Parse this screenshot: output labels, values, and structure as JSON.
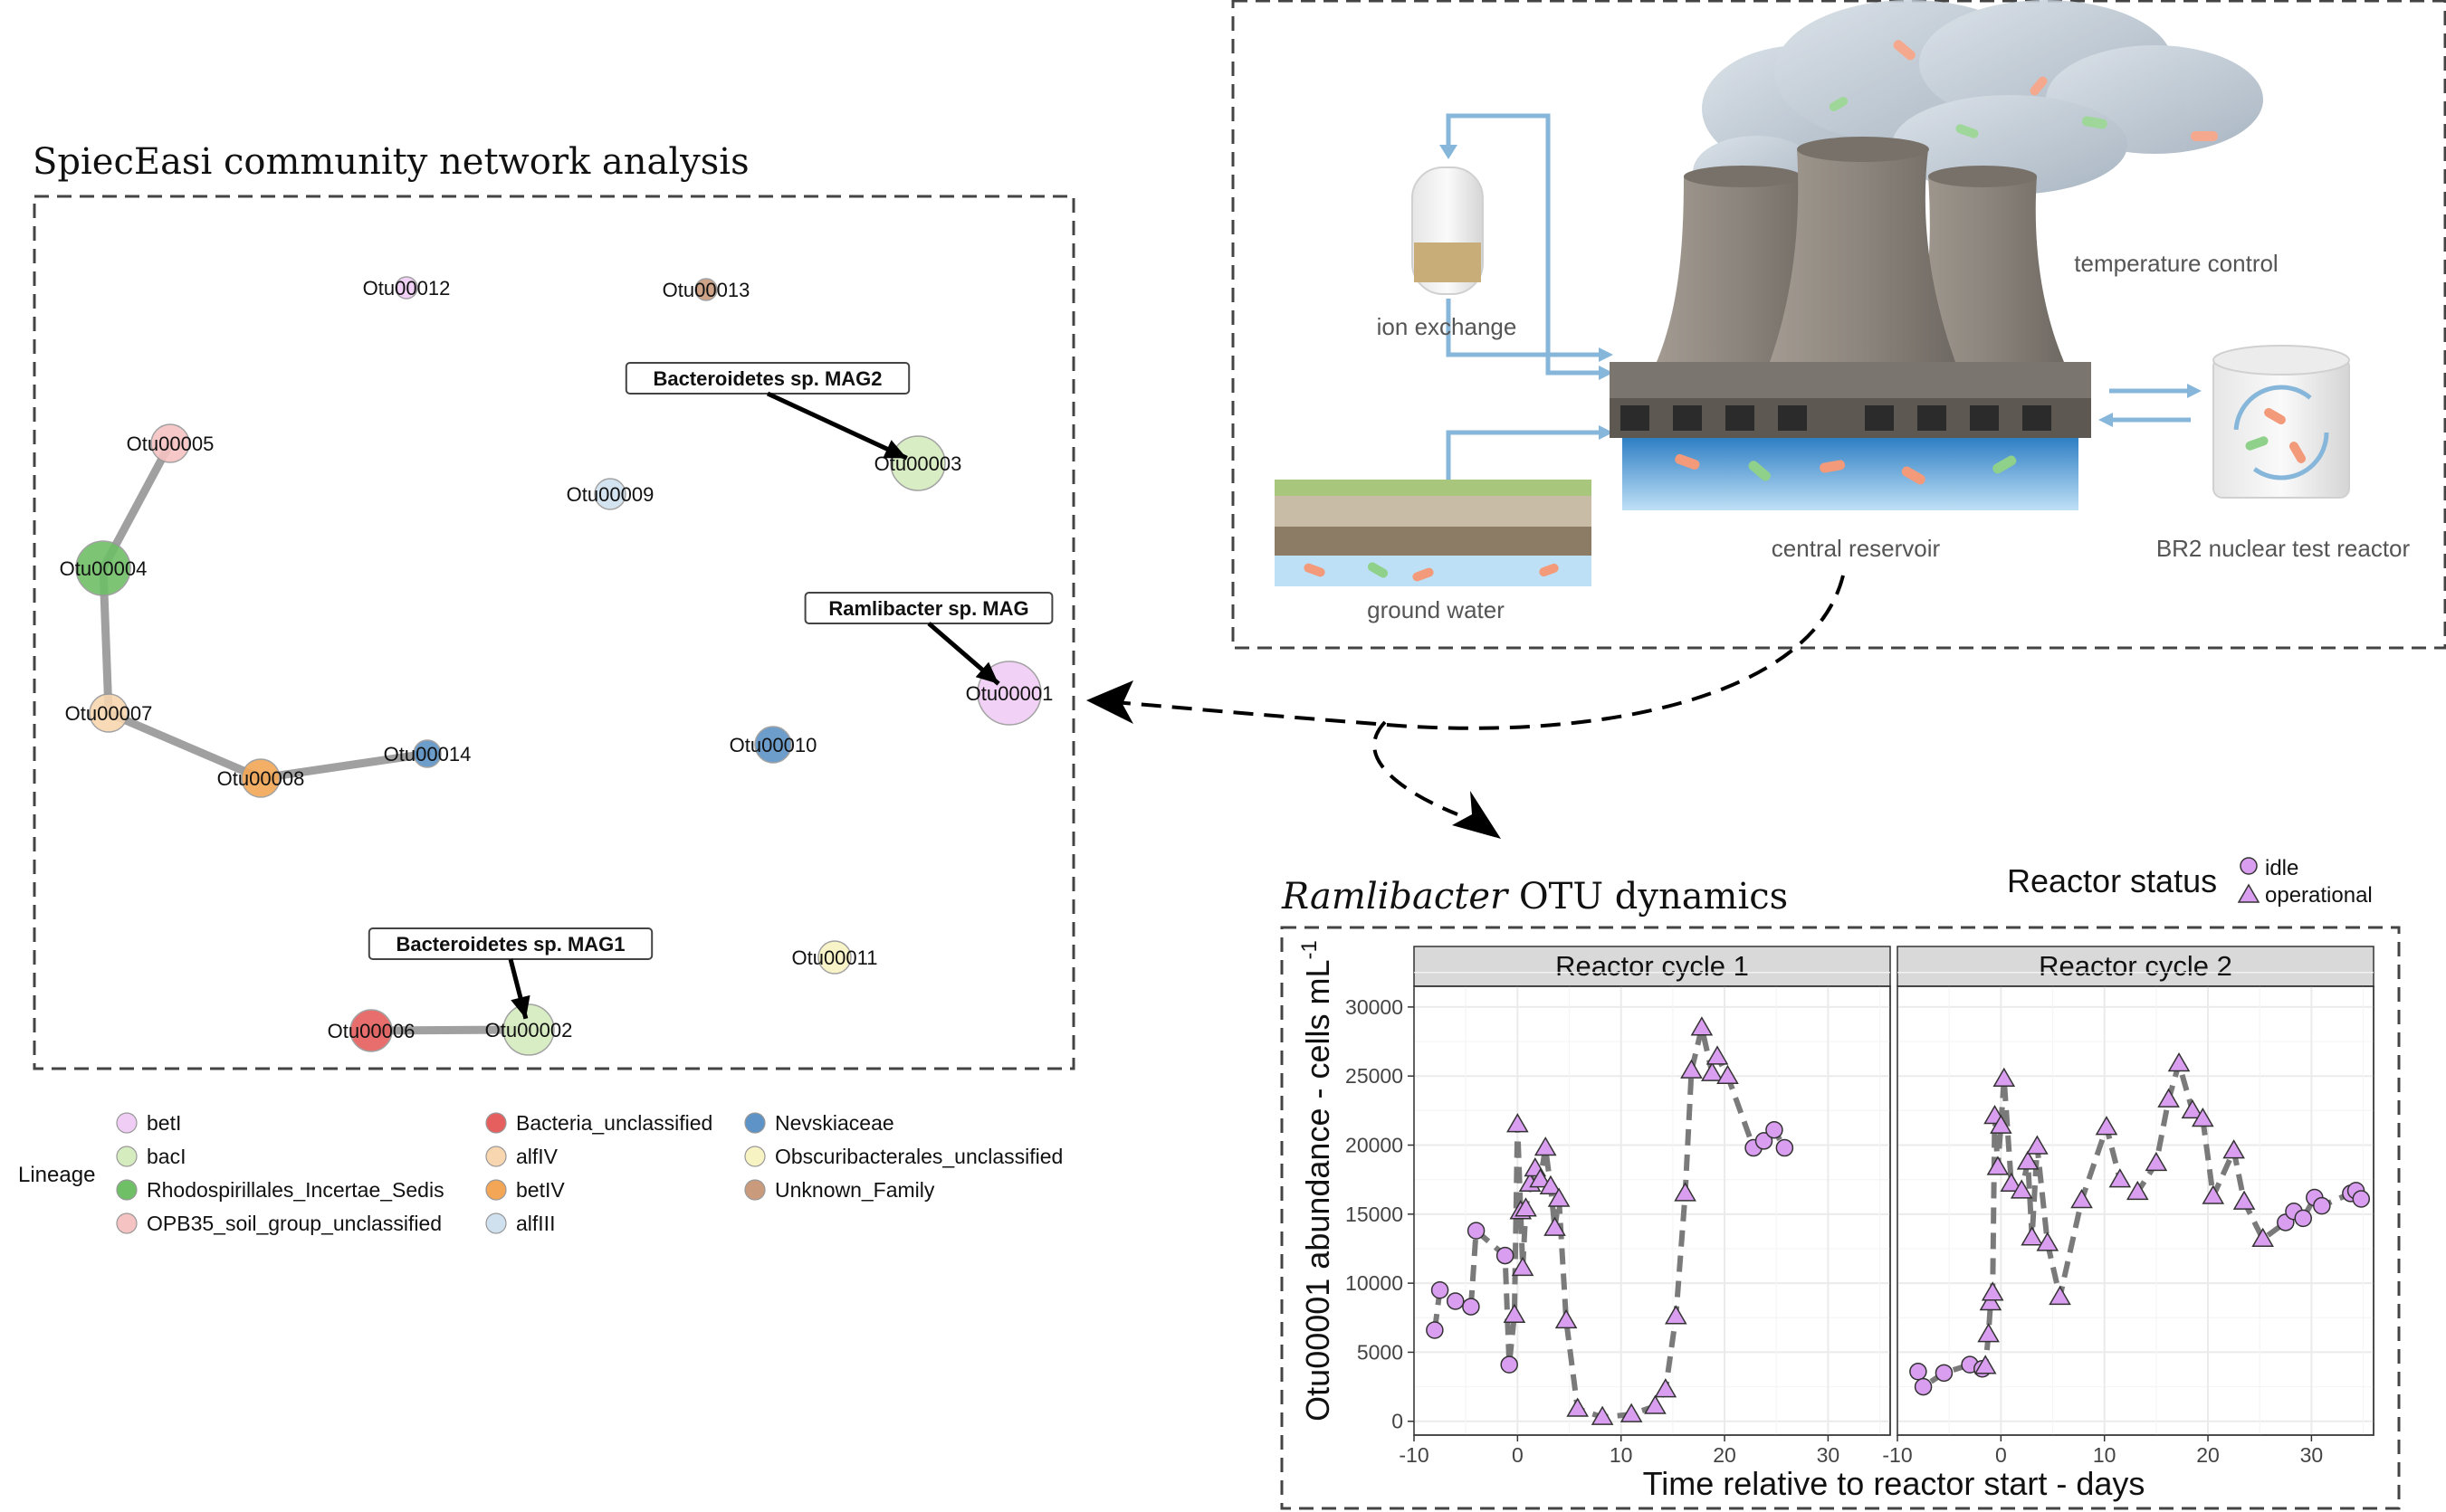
{
  "network": {
    "title": "SpiecEasi community network analysis",
    "nodes": [
      {
        "id": "Otu00012",
        "label": "Otu00012",
        "lineage": "betI",
        "size": 12
      },
      {
        "id": "Otu00013",
        "label": "Otu00013",
        "lineage": "Unknown_Family",
        "size": 12
      },
      {
        "id": "Otu00005",
        "label": "Otu00005",
        "lineage": "OPB35_soil_group_unclassified",
        "size": 21
      },
      {
        "id": "Otu00003",
        "label": "Otu00003",
        "lineage": "bacI",
        "size": 30
      },
      {
        "id": "Otu00009",
        "label": "Otu00009",
        "lineage": "alfIII",
        "size": 17
      },
      {
        "id": "Otu00004",
        "label": "Otu00004",
        "lineage": "Rhodospirillales_Incertae_Sedis",
        "size": 30
      },
      {
        "id": "Otu00001",
        "label": "Otu00001",
        "lineage": "betI",
        "size": 35
      },
      {
        "id": "Otu00007",
        "label": "Otu00007",
        "lineage": "alfIV",
        "size": 21
      },
      {
        "id": "Otu00010",
        "label": "Otu00010",
        "lineage": "Nevskiaceae",
        "size": 20
      },
      {
        "id": "Otu00014",
        "label": "Otu00014",
        "lineage": "Nevskiaceae",
        "size": 15
      },
      {
        "id": "Otu00008",
        "label": "Otu00008",
        "lineage": "betIV",
        "size": 21
      },
      {
        "id": "Otu00011",
        "label": "Otu00011",
        "lineage": "Obscuribacterales_unclassified",
        "size": 18
      },
      {
        "id": "Otu00006",
        "label": "Otu00006",
        "lineage": "Bacteria_unclassified",
        "size": 23
      },
      {
        "id": "Otu00002",
        "label": "Otu00002",
        "lineage": "bacI",
        "size": 28
      }
    ],
    "edges": [
      {
        "source": "Otu00005",
        "target": "Otu00004"
      },
      {
        "source": "Otu00004",
        "target": "Otu00007"
      },
      {
        "source": "Otu00007",
        "target": "Otu00008"
      },
      {
        "source": "Otu00008",
        "target": "Otu00014"
      },
      {
        "source": "Otu00006",
        "target": "Otu00002"
      }
    ],
    "annotations": [
      {
        "text": "Bacteroidetes sp. MAG2",
        "target": "Otu00003"
      },
      {
        "text": "Ramlibacter sp. MAG",
        "target": "Otu00001"
      },
      {
        "text": "Bacteroidetes sp. MAG1",
        "target": "Otu00002"
      }
    ],
    "legend": {
      "title": "Lineage",
      "items": [
        {
          "label": "betI",
          "color": "#f0cdf5"
        },
        {
          "label": "bacI",
          "color": "#d5ecbf"
        },
        {
          "label": "Rhodospirillales_Incertae_Sedis",
          "color": "#6fbf67"
        },
        {
          "label": "OPB35_soil_group_unclassified",
          "color": "#f6c3c3"
        },
        {
          "label": "Bacteria_unclassified",
          "color": "#e65f5f"
        },
        {
          "label": "alfIV",
          "color": "#f8d6b0"
        },
        {
          "label": "betIV",
          "color": "#f3a756"
        },
        {
          "label": "alfIII",
          "color": "#cfe0ee"
        },
        {
          "label": "Nevskiaceae",
          "color": "#5d93c6"
        },
        {
          "label": "Obscuribacterales_unclassified",
          "color": "#f8f3c3"
        },
        {
          "label": "Unknown_Family",
          "color": "#c99a7c"
        }
      ]
    }
  },
  "schematic": {
    "labels": {
      "ion_exchange": "ion exchange",
      "temperature_control": "temperature control",
      "ground_water": "ground water",
      "central_reservoir": "central reservoir",
      "reactor": "BR2 nuclear test reactor"
    },
    "colors": {
      "pipe": "#86b6da",
      "water": "#5fb3e8",
      "tower": "#8c857d"
    }
  },
  "chart_data": {
    "type": "scatter",
    "title_italic": "Ramlibacter",
    "title_rest": " OTU dynamics",
    "xlabel": "Time relative to reactor start - days",
    "ylabel": "Otu00001 abundance - cells mL",
    "ylabel_superscript": "-1",
    "xticks": [
      -10,
      0,
      10,
      20,
      30
    ],
    "yticks": [
      0,
      5000,
      10000,
      15000,
      20000,
      25000,
      30000
    ],
    "xlim": [
      -10,
      36
    ],
    "ylim": [
      -1000,
      31500
    ],
    "legend": {
      "title": "Reactor status",
      "items": [
        {
          "label": "idle",
          "shape": "circle"
        },
        {
          "label": "operational",
          "shape": "triangle"
        }
      ]
    },
    "colors": {
      "marker": "#d99ef0",
      "line": "#7a7a7a",
      "strip": "#d9d9d9",
      "grid": "#ebebeb"
    },
    "panels": [
      {
        "name": "Reactor cycle 1",
        "points": [
          {
            "x": -8,
            "y": 6600,
            "status": "idle"
          },
          {
            "x": -7.5,
            "y": 9500,
            "status": "idle"
          },
          {
            "x": -6,
            "y": 8700,
            "status": "idle"
          },
          {
            "x": -4.5,
            "y": 8300,
            "status": "idle"
          },
          {
            "x": -4,
            "y": 13800,
            "status": "idle"
          },
          {
            "x": -1.2,
            "y": 12000,
            "status": "idle"
          },
          {
            "x": -0.8,
            "y": 4100,
            "status": "idle"
          },
          {
            "x": -0.3,
            "y": 7700,
            "status": "operational"
          },
          {
            "x": 0,
            "y": 21500,
            "status": "operational"
          },
          {
            "x": 0.3,
            "y": 15200,
            "status": "operational"
          },
          {
            "x": 0.5,
            "y": 11100,
            "status": "operational"
          },
          {
            "x": 0.8,
            "y": 15400,
            "status": "operational"
          },
          {
            "x": 1.2,
            "y": 17200,
            "status": "operational"
          },
          {
            "x": 1.7,
            "y": 18300,
            "status": "operational"
          },
          {
            "x": 2.2,
            "y": 17500,
            "status": "operational"
          },
          {
            "x": 2.7,
            "y": 19800,
            "status": "operational"
          },
          {
            "x": 3.2,
            "y": 17000,
            "status": "operational"
          },
          {
            "x": 3.6,
            "y": 14000,
            "status": "operational"
          },
          {
            "x": 4,
            "y": 16100,
            "status": "operational"
          },
          {
            "x": 4.7,
            "y": 7300,
            "status": "operational"
          },
          {
            "x": 5.8,
            "y": 900,
            "status": "operational"
          },
          {
            "x": 8.2,
            "y": 300,
            "status": "operational"
          },
          {
            "x": 11,
            "y": 500,
            "status": "operational"
          },
          {
            "x": 13.3,
            "y": 1100,
            "status": "operational"
          },
          {
            "x": 14.3,
            "y": 2300,
            "status": "operational"
          },
          {
            "x": 15.3,
            "y": 7600,
            "status": "operational"
          },
          {
            "x": 16.2,
            "y": 16500,
            "status": "operational"
          },
          {
            "x": 16.8,
            "y": 25400,
            "status": "operational"
          },
          {
            "x": 17.8,
            "y": 28500,
            "status": "operational"
          },
          {
            "x": 18.8,
            "y": 25200,
            "status": "operational"
          },
          {
            "x": 19.3,
            "y": 26400,
            "status": "operational"
          },
          {
            "x": 20.3,
            "y": 25000,
            "status": "operational"
          },
          {
            "x": 22.8,
            "y": 19800,
            "status": "idle"
          },
          {
            "x": 23.8,
            "y": 20300,
            "status": "idle"
          },
          {
            "x": 24.8,
            "y": 21100,
            "status": "idle"
          },
          {
            "x": 25.8,
            "y": 19800,
            "status": "idle"
          }
        ]
      },
      {
        "name": "Reactor cycle 2",
        "points": [
          {
            "x": -8,
            "y": 3600,
            "status": "idle"
          },
          {
            "x": -7.5,
            "y": 2500,
            "status": "idle"
          },
          {
            "x": -5.5,
            "y": 3500,
            "status": "idle"
          },
          {
            "x": -3,
            "y": 4100,
            "status": "idle"
          },
          {
            "x": -1.8,
            "y": 3800,
            "status": "idle"
          },
          {
            "x": -1.5,
            "y": 4000,
            "status": "operational"
          },
          {
            "x": -1.2,
            "y": 6300,
            "status": "operational"
          },
          {
            "x": -1,
            "y": 8600,
            "status": "operational"
          },
          {
            "x": -0.8,
            "y": 9300,
            "status": "operational"
          },
          {
            "x": -0.6,
            "y": 22100,
            "status": "operational"
          },
          {
            "x": -0.3,
            "y": 18400,
            "status": "operational"
          },
          {
            "x": 0,
            "y": 21400,
            "status": "operational"
          },
          {
            "x": 0.3,
            "y": 24800,
            "status": "operational"
          },
          {
            "x": 1,
            "y": 17200,
            "status": "operational"
          },
          {
            "x": 2,
            "y": 16700,
            "status": "operational"
          },
          {
            "x": 2.6,
            "y": 18800,
            "status": "operational"
          },
          {
            "x": 3,
            "y": 13300,
            "status": "operational"
          },
          {
            "x": 3.5,
            "y": 19900,
            "status": "operational"
          },
          {
            "x": 4.5,
            "y": 12900,
            "status": "operational"
          },
          {
            "x": 5.7,
            "y": 9000,
            "status": "operational"
          },
          {
            "x": 7.8,
            "y": 16000,
            "status": "operational"
          },
          {
            "x": 10.2,
            "y": 21300,
            "status": "operational"
          },
          {
            "x": 11.5,
            "y": 17500,
            "status": "operational"
          },
          {
            "x": 13.2,
            "y": 16600,
            "status": "operational"
          },
          {
            "x": 15,
            "y": 18700,
            "status": "operational"
          },
          {
            "x": 16.2,
            "y": 23300,
            "status": "operational"
          },
          {
            "x": 17.2,
            "y": 25900,
            "status": "operational"
          },
          {
            "x": 18.5,
            "y": 22500,
            "status": "operational"
          },
          {
            "x": 19.5,
            "y": 21900,
            "status": "operational"
          },
          {
            "x": 20.5,
            "y": 16300,
            "status": "operational"
          },
          {
            "x": 22.5,
            "y": 19600,
            "status": "operational"
          },
          {
            "x": 23.5,
            "y": 15900,
            "status": "operational"
          },
          {
            "x": 25.3,
            "y": 13200,
            "status": "operational"
          },
          {
            "x": 27.5,
            "y": 14400,
            "status": "idle"
          },
          {
            "x": 28.3,
            "y": 15200,
            "status": "idle"
          },
          {
            "x": 29.2,
            "y": 14700,
            "status": "idle"
          },
          {
            "x": 30.3,
            "y": 16200,
            "status": "idle"
          },
          {
            "x": 31,
            "y": 15600,
            "status": "idle"
          },
          {
            "x": 33.8,
            "y": 16500,
            "status": "idle"
          },
          {
            "x": 34.3,
            "y": 16700,
            "status": "idle"
          },
          {
            "x": 34.8,
            "y": 16100,
            "status": "idle"
          }
        ]
      }
    ]
  }
}
